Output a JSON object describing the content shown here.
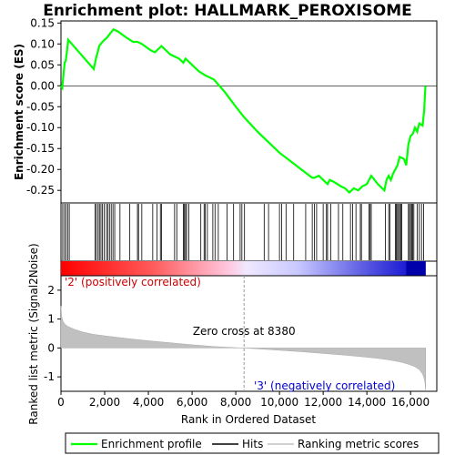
{
  "chart_data": {
    "type": "line",
    "title": "Enrichment plot: HALLMARK_PEROXISOME",
    "top_panel": {
      "ylabel": "Enrichment score (ES)",
      "ylim": [
        -0.28,
        0.155
      ],
      "yticks": [
        0.15,
        0.1,
        0.05,
        0.0,
        -0.05,
        -0.1,
        -0.15,
        -0.2,
        -0.25
      ],
      "ytick_labels": [
        "0.15",
        "0.10",
        "0.05",
        "0.00",
        "-0.05",
        "-0.10",
        "-0.15",
        "-0.20",
        "-0.25"
      ],
      "series": [
        {
          "name": "Enrichment profile",
          "color": "#00ff00",
          "x": [
            0,
            60,
            120,
            170,
            220,
            280,
            330,
            1500,
            1600,
            1680,
            1750,
            1820,
            1900,
            2000,
            2100,
            2180,
            2250,
            2330,
            2400,
            2600,
            3000,
            3300,
            3500,
            3700,
            4100,
            4300,
            4500,
            4600,
            5000,
            5400,
            5600,
            5700,
            6000,
            6300,
            6600,
            6800,
            7000,
            7500,
            8000,
            8380,
            9000,
            9500,
            10000,
            10500,
            11000,
            11500,
            11600,
            11800,
            12000,
            12200,
            12300,
            12500,
            12800,
            13000,
            13200,
            13400,
            13600,
            13800,
            14000,
            14200,
            14500,
            14800,
            14900,
            15000,
            15100,
            15200,
            15300,
            15400,
            15500,
            15700,
            15800,
            15900,
            16000,
            16100,
            16200,
            16300,
            16400,
            16550,
            16620,
            16680
          ],
          "y": [
            0.0,
            -0.005,
            0.03,
            0.055,
            0.06,
            0.085,
            0.11,
            0.04,
            0.065,
            0.08,
            0.095,
            0.1,
            0.105,
            0.11,
            0.115,
            0.12,
            0.125,
            0.13,
            0.135,
            0.13,
            0.115,
            0.105,
            0.105,
            0.1,
            0.085,
            0.08,
            0.09,
            0.095,
            0.075,
            0.065,
            0.055,
            0.065,
            0.05,
            0.035,
            0.025,
            0.02,
            0.015,
            -0.015,
            -0.05,
            -0.075,
            -0.11,
            -0.135,
            -0.16,
            -0.18,
            -0.2,
            -0.22,
            -0.22,
            -0.215,
            -0.225,
            -0.235,
            -0.225,
            -0.23,
            -0.24,
            -0.245,
            -0.255,
            -0.245,
            -0.25,
            -0.24,
            -0.235,
            -0.215,
            -0.235,
            -0.25,
            -0.225,
            -0.215,
            -0.225,
            -0.21,
            -0.2,
            -0.19,
            -0.17,
            -0.175,
            -0.19,
            -0.14,
            -0.12,
            -0.115,
            -0.1,
            -0.11,
            -0.09,
            -0.095,
            -0.06,
            0.0
          ]
        }
      ]
    },
    "hits": {
      "name": "Hits",
      "positions": [
        80,
        160,
        230,
        310,
        380,
        1560,
        1620,
        1700,
        1760,
        1830,
        1900,
        1980,
        2080,
        2150,
        2220,
        2300,
        2380,
        2460,
        2700,
        3150,
        3500,
        3550,
        3700,
        4200,
        4400,
        4550,
        4600,
        5200,
        5300,
        5600,
        5650,
        5700,
        5750,
        5850,
        6400,
        6550,
        6600,
        6700,
        6950,
        7050,
        7200,
        7600,
        7900,
        8200,
        8280,
        8400,
        9300,
        9500,
        10000,
        10100,
        10300,
        10650,
        11200,
        11500,
        11600,
        11700,
        12000,
        12150,
        12200,
        12350,
        12700,
        12900,
        13250,
        13350,
        13500,
        13700,
        13750,
        14100,
        14150,
        14200,
        14850,
        15000,
        15050,
        15300,
        15350,
        15400,
        15450,
        15500,
        15550,
        15600,
        15900,
        15950,
        16000,
        16050,
        16100,
        16150,
        16300,
        16400,
        16500,
        16600
      ]
    },
    "ranking_bar": {
      "name": "Ranking metric scores",
      "pos_label": "'2' (positively correlated)",
      "neg_label": "'3' (negatively correlated)"
    },
    "bottom_panel": {
      "ylabel": "Ranked list metric (Signal2Noise)",
      "ylim": [
        -1.5,
        2.5
      ],
      "yticks": [
        2,
        1,
        0,
        -1
      ],
      "ytick_labels": [
        "2",
        "1",
        "0",
        "-1"
      ],
      "zero_cross_text": "Zero cross at 8380",
      "zero_cross": 8380,
      "metric_x": [
        0,
        30,
        80,
        150,
        300,
        600,
        1000,
        1500,
        2000,
        3000,
        4000,
        5000,
        6000,
        7000,
        8000,
        8380,
        9000,
        10000,
        11000,
        12000,
        13000,
        14000,
        14500,
        15000,
        15500,
        15800,
        16000,
        16200,
        16400,
        16550,
        16620,
        16660,
        16690
      ],
      "metric_y": [
        1.45,
        1.1,
        0.95,
        0.85,
        0.75,
        0.65,
        0.55,
        0.47,
        0.42,
        0.33,
        0.25,
        0.18,
        0.11,
        0.05,
        0.01,
        0.0,
        -0.03,
        -0.08,
        -0.13,
        -0.19,
        -0.25,
        -0.32,
        -0.36,
        -0.41,
        -0.48,
        -0.54,
        -0.59,
        -0.65,
        -0.75,
        -0.9,
        -1.05,
        -1.2,
        -1.5
      ]
    },
    "xaxis": {
      "label": "Rank in Ordered Dataset",
      "xlim": [
        0,
        17200
      ],
      "ticks": [
        0,
        2000,
        4000,
        6000,
        8000,
        10000,
        12000,
        14000,
        16000
      ],
      "tick_labels": [
        "0",
        "2,000",
        "4,000",
        "6,000",
        "8,000",
        "10,000",
        "12,000",
        "14,000",
        "16,000"
      ]
    },
    "legend": {
      "placement": "bottom",
      "items": [
        {
          "label": "Enrichment profile",
          "color": "#00ff00"
        },
        {
          "label": "Hits",
          "color": "#000000"
        },
        {
          "label": "Ranking metric scores",
          "color": "#c0c0c0"
        }
      ]
    }
  }
}
